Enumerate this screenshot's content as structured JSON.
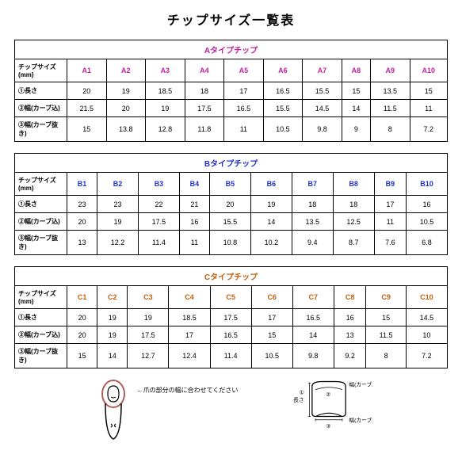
{
  "page_title": "チップサイズ一覧表",
  "row_labels": {
    "size_mm": "チップサイズ(mm)",
    "length": "①長さ",
    "width_curve_in": "②幅(カーブ込)",
    "width_curve_out": "③幅(カーブ抜き)"
  },
  "groups": [
    {
      "name": "Aタイプチップ",
      "header_color": "#c020a0",
      "sizes": [
        "A1",
        "A2",
        "A3",
        "A4",
        "A5",
        "A6",
        "A7",
        "A8",
        "A9",
        "A10"
      ],
      "length": [
        20,
        19,
        18.5,
        18,
        17,
        16.5,
        15.5,
        15,
        13.5,
        15
      ],
      "width_in": [
        21.5,
        20,
        19,
        17.5,
        16.5,
        15.5,
        14.5,
        14,
        11.5,
        11
      ],
      "width_out": [
        15,
        13.8,
        12.8,
        11.8,
        11,
        10.5,
        9.8,
        9,
        8,
        7.2
      ]
    },
    {
      "name": "Bタイプチップ",
      "header_color": "#2030d0",
      "sizes": [
        "B1",
        "B2",
        "B3",
        "B4",
        "B5",
        "B6",
        "B7",
        "B8",
        "B9",
        "B10"
      ],
      "length": [
        23,
        23,
        22,
        21,
        20,
        19,
        18,
        18,
        17,
        16
      ],
      "width_in": [
        20,
        19,
        17.5,
        16,
        15.5,
        14,
        13.5,
        12.5,
        11,
        10.5
      ],
      "width_out": [
        13,
        12.2,
        11.4,
        11,
        10.8,
        10.2,
        9.4,
        8.7,
        7.6,
        6.8
      ]
    },
    {
      "name": "Cタイプチップ",
      "header_color": "#c06010",
      "sizes": [
        "C1",
        "C2",
        "C3",
        "C4",
        "C5",
        "C6",
        "C7",
        "C8",
        "C9",
        "C10"
      ],
      "length": [
        20,
        19,
        19,
        18.5,
        17.5,
        17,
        16.5,
        16,
        15,
        14.5
      ],
      "width_in": [
        20,
        19,
        17.5,
        17,
        16.5,
        15,
        14,
        13,
        11.5,
        10
      ],
      "width_out": [
        15,
        14,
        12.7,
        12.4,
        11.4,
        10.5,
        9.8,
        9.2,
        8,
        7.2
      ]
    }
  ],
  "finger_caption": "←爪の部分の幅に合わせてください",
  "nail_diagram": {
    "length_label": "長さ",
    "width_in_label": "幅(カーブ込)",
    "width_out_label": "幅(カーブ無)",
    "num1": "①",
    "num2": "②",
    "num3": "③"
  }
}
